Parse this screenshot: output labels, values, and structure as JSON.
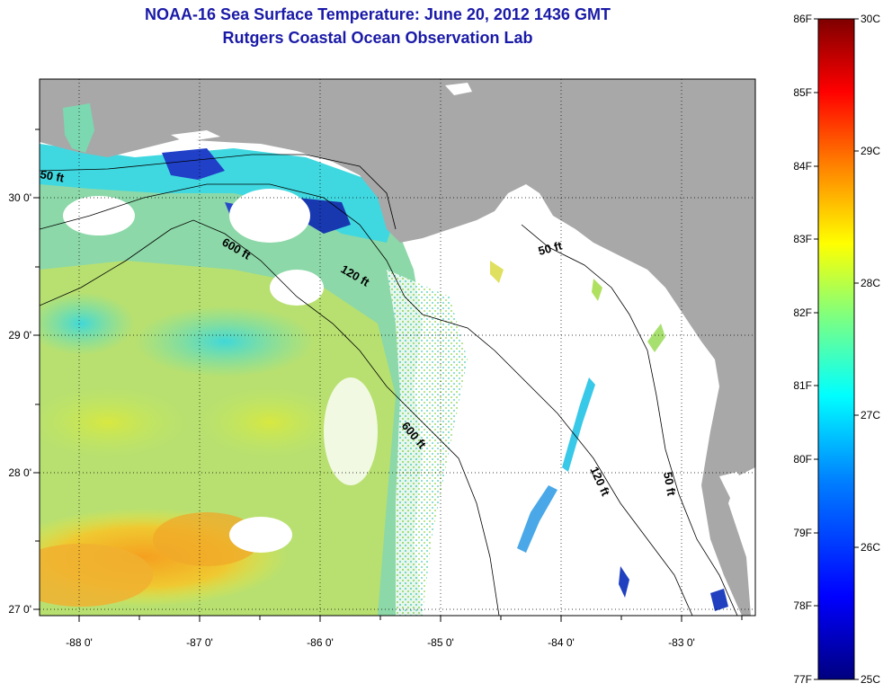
{
  "title": {
    "line1": "NOAA-16 Sea Surface Temperature:  June 20, 2012 1436 GMT",
    "line2": "Rutgers Coastal Ocean Observation Lab"
  },
  "map": {
    "lon_ticks": [
      "-88 0'",
      "-87 0'",
      "-86 0'",
      "-85 0'",
      "-84 0'",
      "-83 0'"
    ],
    "lat_ticks": [
      "30 0'",
      "29 0'",
      "28 0'",
      "27 0'"
    ],
    "contour_labels": [
      "50 ft",
      "600 ft",
      "120 ft",
      "50 ft",
      "600 ft",
      "120 ft",
      "50 ft"
    ],
    "land_color": "#a8a8a8",
    "cloud_color": "#ffffff"
  },
  "colorbar": {
    "f_labels": [
      "86F",
      "85F",
      "84F",
      "83F",
      "82F",
      "81F",
      "80F",
      "79F",
      "78F",
      "77F"
    ],
    "c_labels": [
      "30C",
      "29C",
      "28C",
      "27C",
      "26C",
      "25C"
    ],
    "range_c": [
      25,
      30
    ],
    "colors": [
      "#00007f",
      "#0000ff",
      "#007fff",
      "#00ffff",
      "#7fff7f",
      "#ffff00",
      "#ff7f00",
      "#ff0000",
      "#7f0000"
    ]
  }
}
